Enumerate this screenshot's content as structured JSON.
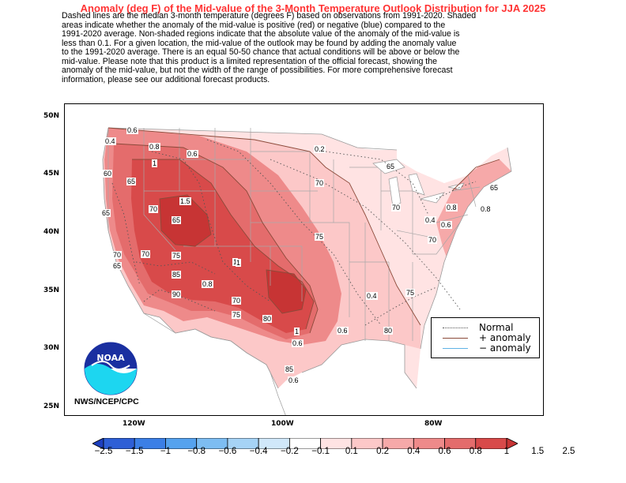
{
  "title": "Anomaly (deg F) of the Mid-value of the 3-Month Temperature Outlook Distribution for JJA 2025",
  "description": "Dashed lines are the median 3-month temperature (degrees F) based on observations from 1991-2020.  Shaded\nareas indicate whether the anomaly of the mid-value is positive (red) or negative (blue) compared to the\n1991-2020 average.   Non-shaded regions indicate that the absolute value of the anomaly of the mid-value is\nless than 0.1.   For a given location, the mid-value of the outlook may be found by adding the anomaly value\nto the 1991-2020 average. There is an equal 50-50 chance that actual conditions will be above or below the\nmid-value. Please note that this product is a limited representation of the official forecast, showing the\nanomaly of the mid-value, but not the width of the range of possibilities. For more comprehensive forecast\ninformation, please see our additional forecast products.",
  "lat_labels": [
    "50N",
    "45N",
    "40N",
    "35N",
    "30N",
    "25N"
  ],
  "lon_labels": [
    "120W",
    "100W",
    "80W"
  ],
  "legend": {
    "normal": "Normal",
    "plus": "+ anomaly",
    "minus": "− anomaly"
  },
  "credit": "NWS/NCEP/CPC",
  "logo_text": "NOAA",
  "colorbar": {
    "labels": [
      "−2.5",
      "−1.5",
      "−1",
      "−0.8",
      "−0.6",
      "−0.4",
      "−0.2",
      "−0.1",
      "0.1",
      "0.2",
      "0.4",
      "0.6",
      "0.8",
      "1",
      "1.5",
      "2.5"
    ],
    "colors": [
      "#1d3fbf",
      "#2e5fd6",
      "#3b7fe6",
      "#55a2ee",
      "#7dbdf2",
      "#a6d3f6",
      "#d0e8fa",
      "#ffffff",
      "#ffe3e3",
      "#fcc8c8",
      "#f6a9a9",
      "#ee8a8a",
      "#e46c6c",
      "#d84a4a",
      "#c73434"
    ]
  },
  "contour_labels": {
    "dotted": [
      "60",
      "65",
      "65",
      "70",
      "70",
      "75",
      "65",
      "85",
      "90",
      "70",
      "75",
      "80",
      "70",
      "65",
      "70",
      "75",
      "80",
      "85",
      "75",
      "70",
      "65",
      "65",
      "70"
    ],
    "solid": [
      "0.6",
      "0.4",
      "0.8",
      "1",
      "0.6",
      "1.5",
      "0.2",
      "1",
      "0.8",
      "0.6",
      "0.4",
      "0.6",
      "0.8",
      "1",
      "0.6",
      "0.4",
      "0.6",
      "0.8",
      "1"
    ]
  }
}
